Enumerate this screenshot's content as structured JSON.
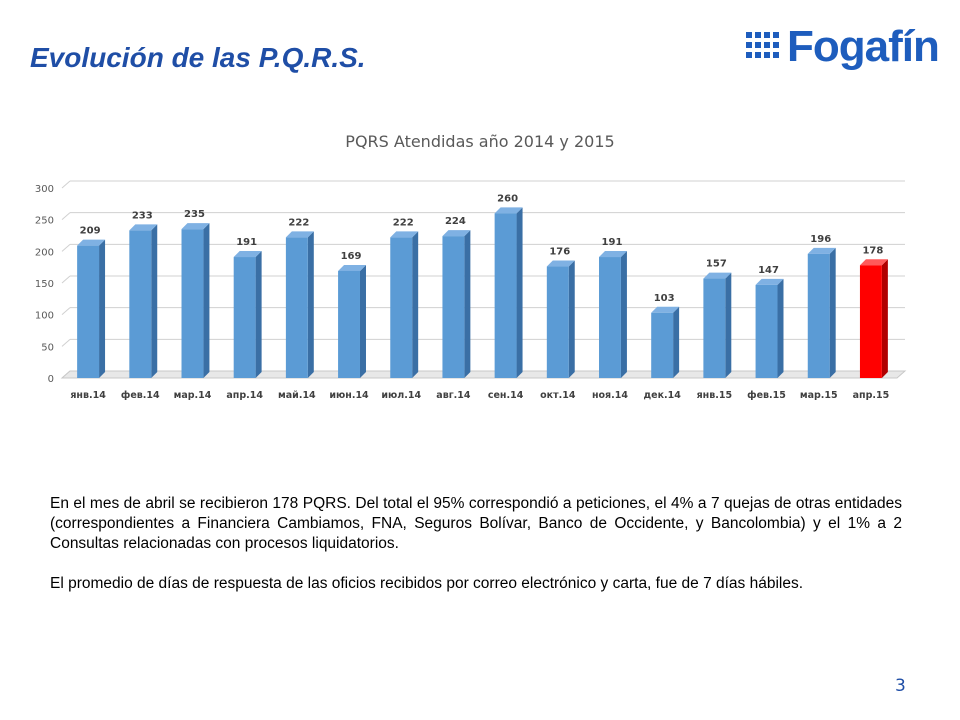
{
  "slide": {
    "title": "Evolución de las P.Q.R.S.",
    "logo_text": "Fogafín",
    "page_number": "3",
    "paragraphs": [
      "En el mes de abril se recibieron 178 PQRS. Del total el 95% correspondió a peticiones, el 4% a 7 quejas de otras entidades (correspondientes a Financiera Cambiamos, FNA, Seguros Bolívar, Banco de Occidente, y Bancolombia) y el 1% a 2 Consultas relacionadas con procesos liquidatorios.",
      "El promedio de días de respuesta de las oficios recibidos por correo electrónico y carta, fue de 7 días hábiles."
    ]
  },
  "colors": {
    "title": "#1f4ea6",
    "logo": "#1e5dbd",
    "bar": "#5b9bd5",
    "bar_highlight": "#ff0000"
  },
  "chart_data": {
    "type": "bar",
    "title": "PQRS Atendidas año 2014 y 2015",
    "categories": [
      "янв.14",
      "фев.14",
      "мар.14",
      "апр.14",
      "май.14",
      "июн.14",
      "июл.14",
      "авг.14",
      "сен.14",
      "окт.14",
      "ноя.14",
      "дек.14",
      "янв.15",
      "фев.15",
      "мар.15",
      "апр.15"
    ],
    "values": [
      209,
      233,
      235,
      191,
      222,
      169,
      222,
      224,
      260,
      176,
      191,
      103,
      157,
      147,
      196,
      178
    ],
    "highlight_index": 15,
    "ylim": [
      0,
      300
    ],
    "yticks": [
      0,
      50,
      100,
      150,
      200,
      250,
      300
    ],
    "grid": true,
    "data_labels": true,
    "xlabel": "",
    "ylabel": ""
  }
}
